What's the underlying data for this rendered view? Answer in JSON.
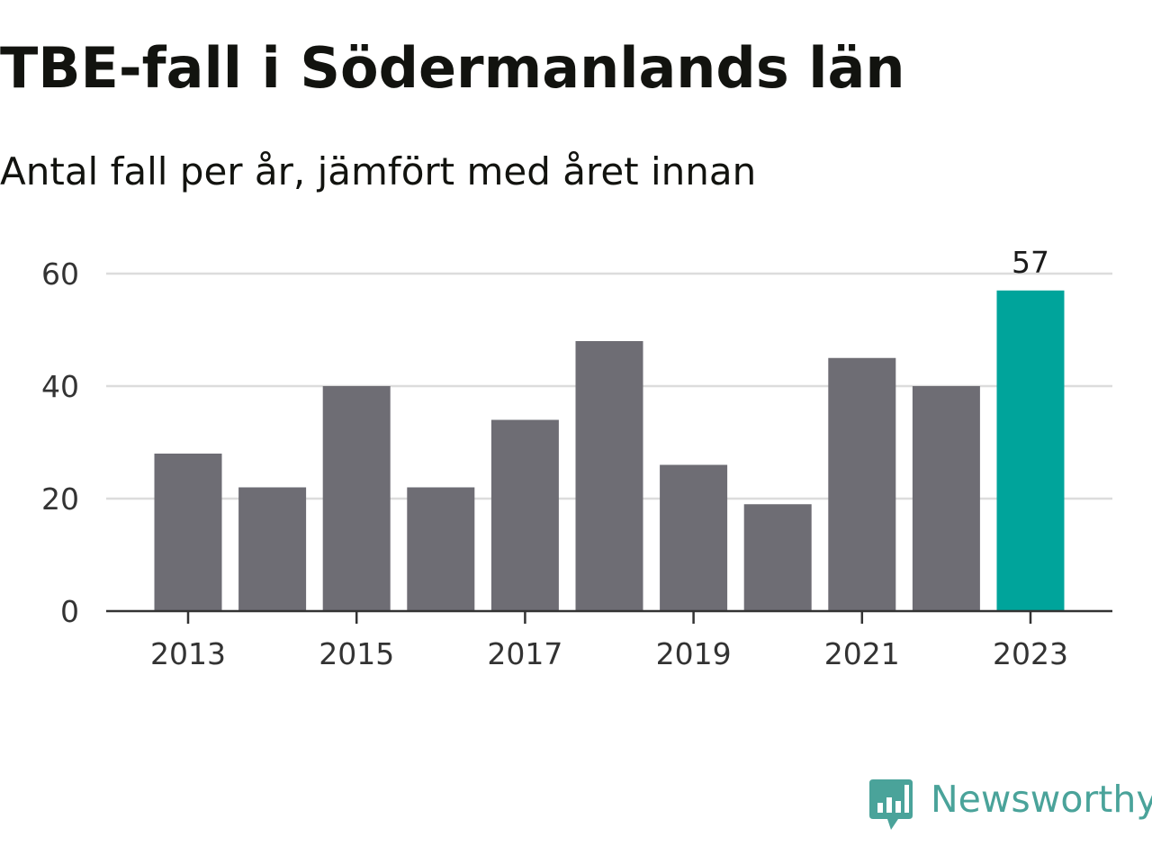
{
  "title": "TBE-fall i Södermanlands län",
  "subtitle": "Antal fall per år, jämfört med året innan",
  "brand": {
    "name": "Newsworthy",
    "logo_icon": "bar-chart-speech-bubble-icon",
    "color": "#4aa39a"
  },
  "colors": {
    "bar": "#6e6d74",
    "highlight": "#00a49b",
    "grid": "#dcdcdc",
    "axis": "#333333",
    "text": "#333333"
  },
  "chart_data": {
    "type": "bar",
    "categories": [
      "2013",
      "2014",
      "2015",
      "2016",
      "2017",
      "2018",
      "2019",
      "2020",
      "2021",
      "2022",
      "2023"
    ],
    "values": [
      28,
      22,
      40,
      22,
      34,
      48,
      26,
      19,
      45,
      40,
      57
    ],
    "x_tick_labels": [
      "2013",
      "2015",
      "2017",
      "2019",
      "2021",
      "2023"
    ],
    "y_ticks": [
      0,
      20,
      40,
      60
    ],
    "ylim": [
      0,
      60
    ],
    "highlight_category": "2023",
    "data_labels": [
      {
        "category": "2023",
        "label": "57"
      }
    ],
    "grid": true,
    "legend": "none"
  }
}
